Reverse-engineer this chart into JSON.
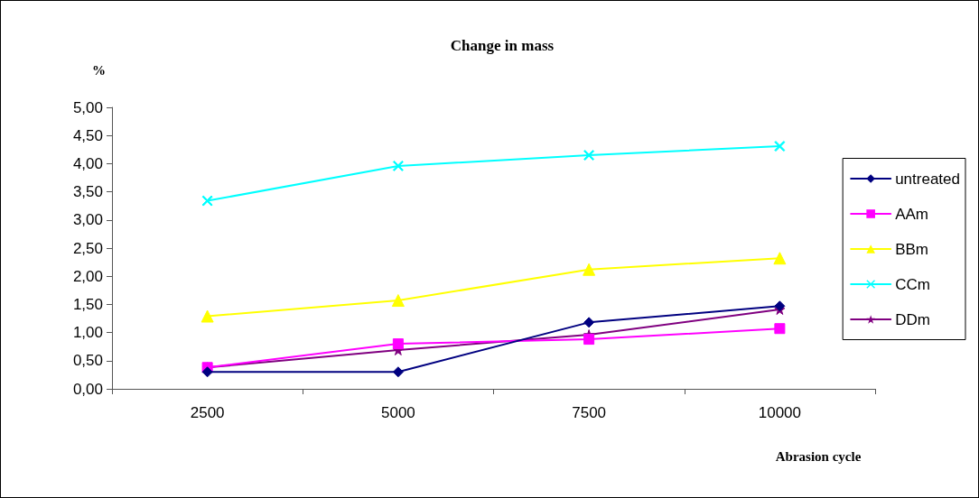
{
  "chart_data": {
    "type": "line",
    "title": "Change in mass",
    "xlabel": "Abrasion cycle",
    "ylabel": "%",
    "categories": [
      "2500",
      "5000",
      "7500",
      "10000"
    ],
    "series": [
      {
        "name": "untreated",
        "color": "#000080",
        "marker": "diamond",
        "values": [
          0.3,
          0.3,
          1.18,
          1.47
        ]
      },
      {
        "name": "AAm",
        "color": "#ff00ff",
        "marker": "square",
        "values": [
          0.38,
          0.8,
          0.88,
          1.07
        ]
      },
      {
        "name": "BBm",
        "color": "#ffff00",
        "marker": "triangle",
        "values": [
          1.29,
          1.57,
          2.12,
          2.32
        ]
      },
      {
        "name": "CCm",
        "color": "#00ffff",
        "marker": "cross",
        "values": [
          3.34,
          3.96,
          4.15,
          4.31
        ]
      },
      {
        "name": "DDm",
        "color": "#800080",
        "marker": "star",
        "values": [
          0.38,
          0.69,
          0.96,
          1.41
        ]
      }
    ],
    "ylim": [
      0,
      5
    ],
    "yticks": [
      {
        "value": 0,
        "label": "0,00"
      },
      {
        "value": 0.5,
        "label": "0,50"
      },
      {
        "value": 1,
        "label": "1,00"
      },
      {
        "value": 1.5,
        "label": "1,50"
      },
      {
        "value": 2,
        "label": "2,00"
      },
      {
        "value": 2.5,
        "label": "2,50"
      },
      {
        "value": 3,
        "label": "3,00"
      },
      {
        "value": 3.5,
        "label": "3,50"
      },
      {
        "value": 4,
        "label": "4,00"
      },
      {
        "value": 4.5,
        "label": "4,50"
      },
      {
        "value": 5,
        "label": "5,00"
      }
    ],
    "grid": false,
    "legend": "right",
    "line_style": "solid"
  }
}
